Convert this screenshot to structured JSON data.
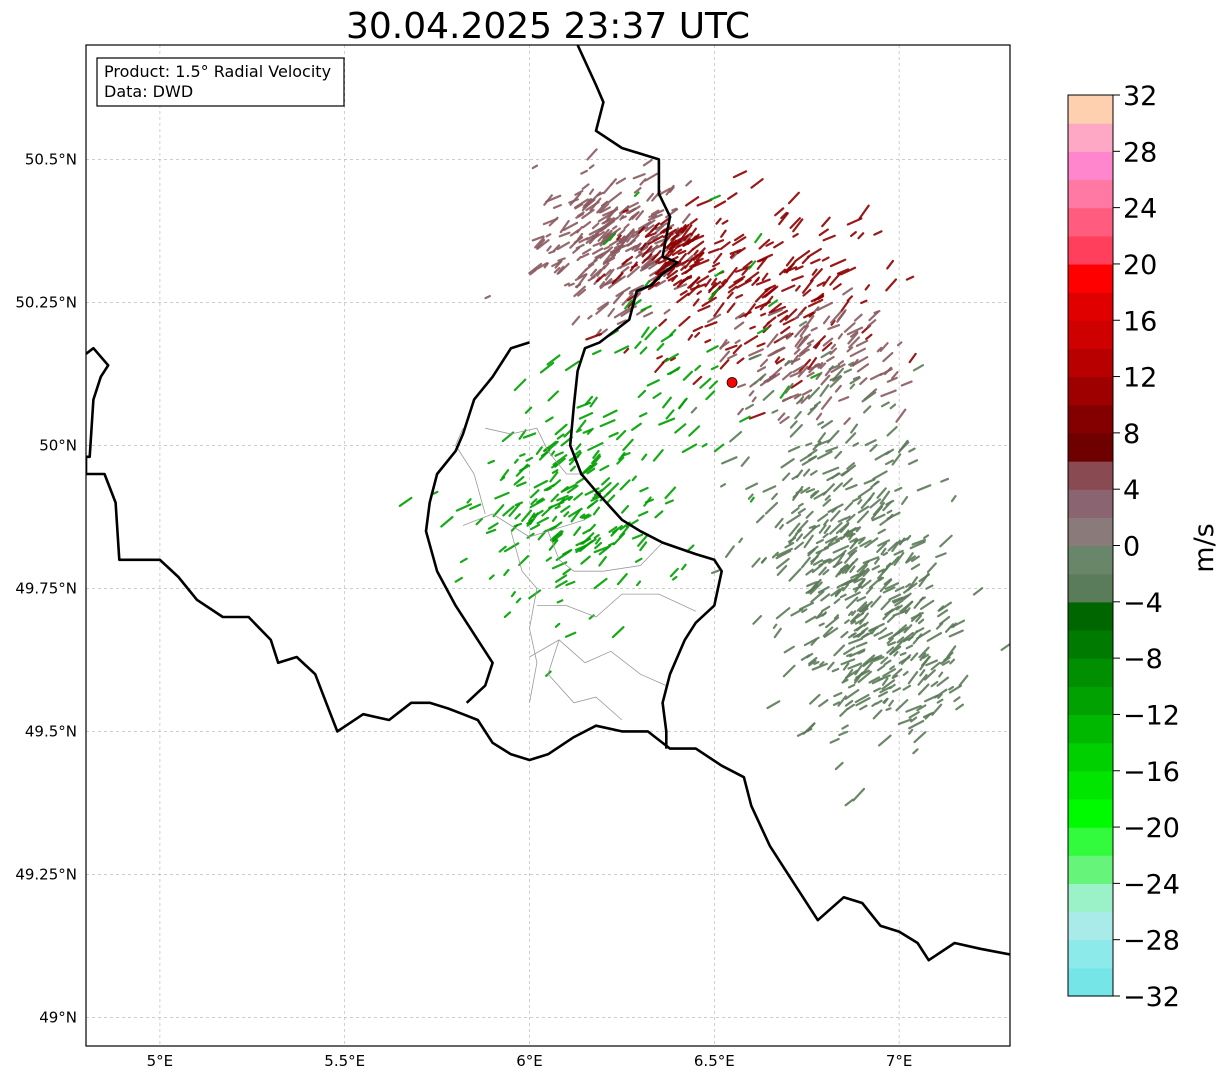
{
  "title": "30.04.2025 23:37 UTC",
  "info": {
    "line1": "Product: 1.5° Radial Velocity",
    "line2": "Data: DWD"
  },
  "map": {
    "lon_range": [
      4.8,
      7.3
    ],
    "lat_range": [
      48.95,
      50.7
    ],
    "lon_ticks": [
      {
        "value": 5.0,
        "label": "5°E"
      },
      {
        "value": 5.5,
        "label": "5.5°E"
      },
      {
        "value": 6.0,
        "label": "6°E"
      },
      {
        "value": 6.5,
        "label": "6.5°E"
      },
      {
        "value": 7.0,
        "label": "7°E"
      }
    ],
    "lat_ticks": [
      {
        "value": 50.5,
        "label": "50.5°N"
      },
      {
        "value": 50.25,
        "label": "50.25°N"
      },
      {
        "value": 50.0,
        "label": "50°N"
      },
      {
        "value": 49.75,
        "label": "49.75°N"
      },
      {
        "value": 49.5,
        "label": "49.5°N"
      },
      {
        "value": 49.25,
        "label": "49.25°N"
      },
      {
        "value": 49.0,
        "label": "49°N"
      }
    ],
    "grid": true,
    "radar_site": {
      "lon": 6.548,
      "lat": 50.11,
      "color": "#ff0000"
    }
  },
  "colorbar": {
    "label": "m/s",
    "vmin": -32,
    "vmax": 32,
    "step": 2,
    "ticks": [
      "32",
      "28",
      "24",
      "20",
      "16",
      "12",
      "8",
      "4",
      "0",
      "−4",
      "−8",
      "−12",
      "−16",
      "−20",
      "−24",
      "−28",
      "−32"
    ],
    "tick_values": [
      32,
      28,
      24,
      20,
      16,
      12,
      8,
      4,
      0,
      -4,
      -8,
      -12,
      -16,
      -20,
      -24,
      -28,
      -32
    ],
    "colors_bottom_to_top": [
      "#75e5e8",
      "#8ceaea",
      "#a8ebe8",
      "#9bf2c8",
      "#66f57a",
      "#32fa3c",
      "#00fa00",
      "#00e600",
      "#00cf00",
      "#00b800",
      "#00a100",
      "#008f00",
      "#007a00",
      "#006600",
      "#5a7c5a",
      "#6a866a",
      "#8a7a7a",
      "#8a6470",
      "#8a4a52",
      "#6e0000",
      "#840000",
      "#9e0000",
      "#b80000",
      "#cf0000",
      "#e10000",
      "#ff0000",
      "#ff3f5c",
      "#ff5c80",
      "#ff79a4",
      "#ff86cc",
      "#ffa8c6",
      "#ffd0b0"
    ]
  },
  "colors": {
    "green_echo": "#00a000",
    "grey_green_echo": "#5b7b58",
    "grey_red_echo": "#8a5a60",
    "dark_red_echo": "#8e0000",
    "border": "#000000",
    "inner_border": "#9a9a9a",
    "grid": "#b0b0b0"
  },
  "regions": {
    "border_outer": [
      [
        4.8,
        50.16
      ],
      [
        4.82,
        50.17
      ],
      [
        4.86,
        50.14
      ],
      [
        4.84,
        50.12
      ],
      [
        4.82,
        50.08
      ],
      [
        4.81,
        49.98
      ],
      [
        4.8,
        49.98
      ],
      [
        4.8,
        49.95
      ],
      [
        4.85,
        49.95
      ],
      [
        4.88,
        49.9
      ],
      [
        4.89,
        49.8
      ],
      [
        5.0,
        49.8
      ],
      [
        5.05,
        49.77
      ],
      [
        5.1,
        49.73
      ],
      [
        5.17,
        49.7
      ],
      [
        5.24,
        49.7
      ],
      [
        5.3,
        49.66
      ],
      [
        5.32,
        49.62
      ],
      [
        5.37,
        49.63
      ],
      [
        5.42,
        49.6
      ],
      [
        5.45,
        49.55
      ],
      [
        5.48,
        49.5
      ],
      [
        5.55,
        49.53
      ],
      [
        5.62,
        49.52
      ],
      [
        5.68,
        49.55
      ],
      [
        5.73,
        49.55
      ],
      [
        5.78,
        49.54
      ],
      [
        5.82,
        49.53
      ],
      [
        5.86,
        49.52
      ],
      [
        5.9,
        49.48
      ],
      [
        5.95,
        49.46
      ],
      [
        6.0,
        49.45
      ],
      [
        6.05,
        49.46
      ],
      [
        6.12,
        49.49
      ],
      [
        6.18,
        49.51
      ],
      [
        6.25,
        49.5
      ],
      [
        6.32,
        49.5
      ],
      [
        6.38,
        49.47
      ],
      [
        6.45,
        49.47
      ],
      [
        6.52,
        49.44
      ],
      [
        6.58,
        49.42
      ],
      [
        6.6,
        49.37
      ],
      [
        6.65,
        49.3
      ],
      [
        6.7,
        49.25
      ],
      [
        6.73,
        49.22
      ],
      [
        6.78,
        49.17
      ],
      [
        6.85,
        49.21
      ],
      [
        6.9,
        49.2
      ],
      [
        6.95,
        49.16
      ],
      [
        7.0,
        49.15
      ],
      [
        7.05,
        49.13
      ],
      [
        7.08,
        49.1
      ],
      [
        7.15,
        49.13
      ],
      [
        7.22,
        49.12
      ],
      [
        7.3,
        49.11
      ]
    ],
    "border_north": [
      [
        6.13,
        50.7
      ],
      [
        6.18,
        50.63
      ],
      [
        6.2,
        50.6
      ],
      [
        6.18,
        50.55
      ],
      [
        6.25,
        50.52
      ],
      [
        6.35,
        50.5
      ],
      [
        6.35,
        50.44
      ],
      [
        6.38,
        50.4
      ],
      [
        6.36,
        50.33
      ],
      [
        6.4,
        50.32
      ],
      [
        6.36,
        50.3
      ],
      [
        6.33,
        50.28
      ],
      [
        6.29,
        50.27
      ],
      [
        6.27,
        50.22
      ],
      [
        6.19,
        50.18
      ],
      [
        6.15,
        50.17
      ],
      [
        6.13,
        50.13
      ],
      [
        6.12,
        50.07
      ],
      [
        6.11,
        50.0
      ],
      [
        6.14,
        49.95
      ],
      [
        6.18,
        49.92
      ],
      [
        6.25,
        49.87
      ],
      [
        6.3,
        49.85
      ],
      [
        6.36,
        49.83
      ],
      [
        6.45,
        49.81
      ],
      [
        6.5,
        49.8
      ],
      [
        6.52,
        49.78
      ],
      [
        6.5,
        49.72
      ],
      [
        6.45,
        49.69
      ],
      [
        6.42,
        49.66
      ],
      [
        6.38,
        49.6
      ],
      [
        6.36,
        49.55
      ],
      [
        6.37,
        49.5
      ],
      [
        6.37,
        49.47
      ]
    ],
    "lux_outline": [
      [
        6.0,
        50.18
      ],
      [
        5.95,
        50.17
      ],
      [
        5.9,
        50.12
      ],
      [
        5.85,
        50.08
      ],
      [
        5.82,
        50.02
      ],
      [
        5.8,
        49.99
      ],
      [
        5.75,
        49.95
      ],
      [
        5.73,
        49.9
      ],
      [
        5.72,
        49.85
      ],
      [
        5.75,
        49.78
      ],
      [
        5.8,
        49.72
      ],
      [
        5.85,
        49.67
      ],
      [
        5.9,
        49.62
      ],
      [
        5.88,
        49.58
      ],
      [
        5.83,
        49.55
      ]
    ],
    "inner_lines": [
      [
        [
          5.88,
          50.03
        ],
        [
          5.95,
          50.02
        ],
        [
          6.02,
          50.03
        ],
        [
          6.05,
          49.99
        ],
        [
          6.1,
          49.95
        ],
        [
          6.14,
          49.95
        ]
      ],
      [
        [
          5.82,
          49.86
        ],
        [
          5.9,
          49.88
        ],
        [
          5.95,
          49.86
        ],
        [
          6.0,
          49.84
        ],
        [
          6.05,
          49.85
        ],
        [
          6.1,
          49.86
        ],
        [
          6.15,
          49.87
        ]
      ],
      [
        [
          5.95,
          49.85
        ],
        [
          5.98,
          49.78
        ],
        [
          6.02,
          49.75
        ],
        [
          6.0,
          49.68
        ],
        [
          6.02,
          49.62
        ],
        [
          6.0,
          49.55
        ]
      ],
      [
        [
          6.02,
          49.72
        ],
        [
          6.1,
          49.72
        ],
        [
          6.18,
          49.7
        ],
        [
          6.25,
          49.74
        ],
        [
          6.35,
          49.74
        ],
        [
          6.45,
          49.71
        ]
      ],
      [
        [
          6.0,
          49.63
        ],
        [
          6.08,
          49.66
        ],
        [
          6.15,
          49.62
        ],
        [
          6.22,
          49.64
        ],
        [
          6.3,
          49.6
        ],
        [
          6.37,
          49.58
        ]
      ],
      [
        [
          6.08,
          49.66
        ],
        [
          6.05,
          49.6
        ],
        [
          6.12,
          49.55
        ],
        [
          6.18,
          49.56
        ],
        [
          6.25,
          49.52
        ]
      ],
      [
        [
          6.05,
          49.85
        ],
        [
          6.08,
          49.8
        ],
        [
          6.12,
          49.78
        ],
        [
          6.2,
          49.78
        ],
        [
          6.3,
          49.79
        ],
        [
          6.36,
          49.83
        ]
      ],
      [
        [
          5.88,
          49.88
        ],
        [
          5.85,
          49.95
        ],
        [
          5.8,
          50.0
        ],
        [
          5.82,
          50.03
        ]
      ]
    ]
  },
  "echo_clusters": [
    {
      "lon": 6.22,
      "lat": 50.35,
      "sx": 0.1,
      "sy": 0.06,
      "n": 260,
      "cls": "grey_red_echo"
    },
    {
      "lon": 6.38,
      "lat": 50.33,
      "sx": 0.05,
      "sy": 0.03,
      "n": 90,
      "cls": "dark_red_echo"
    },
    {
      "lon": 6.6,
      "lat": 50.28,
      "sx": 0.18,
      "sy": 0.08,
      "n": 180,
      "cls": "dark_red_echo"
    },
    {
      "lon": 6.75,
      "lat": 50.15,
      "sx": 0.12,
      "sy": 0.05,
      "n": 120,
      "cls": "grey_red_echo"
    },
    {
      "lon": 6.1,
      "lat": 49.88,
      "sx": 0.12,
      "sy": 0.09,
      "n": 200,
      "cls": "green_echo"
    },
    {
      "lon": 6.35,
      "lat": 50.08,
      "sx": 0.16,
      "sy": 0.12,
      "n": 70,
      "cls": "green_echo"
    },
    {
      "lon": 6.8,
      "lat": 49.93,
      "sx": 0.12,
      "sy": 0.1,
      "n": 170,
      "cls": "grey_green_echo"
    },
    {
      "lon": 6.95,
      "lat": 49.65,
      "sx": 0.12,
      "sy": 0.1,
      "n": 260,
      "cls": "grey_green_echo"
    },
    {
      "lon": 6.85,
      "lat": 49.78,
      "sx": 0.09,
      "sy": 0.05,
      "n": 100,
      "cls": "grey_green_echo"
    }
  ]
}
